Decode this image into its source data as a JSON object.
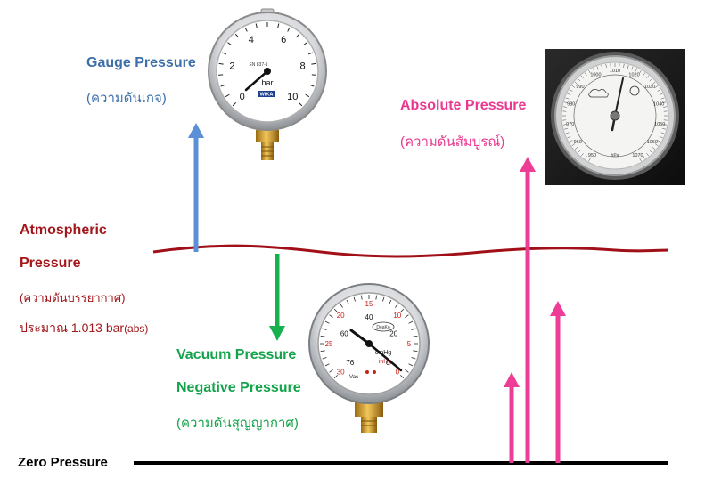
{
  "labels": {
    "gauge_title": "Gauge Pressure",
    "gauge_thai": "(ความดันเกจ)",
    "absolute_title": "Absolute Pressure",
    "absolute_thai": "(ความดันสัมบูรณ์)",
    "atm_line1": "Atmospheric",
    "atm_line2": "Pressure",
    "atm_thai": "(ความดันบรรยากาศ)",
    "atm_value": "ประมาณ 1.013 bar",
    "atm_value_suffix": "(abs)",
    "vacuum_title": "Vacuum Pressure",
    "negative_title": "Negative Pressure",
    "vacuum_thai": "(ความดันสุญญากาศ)",
    "zero_title": "Zero Pressure"
  },
  "gauges": {
    "bar_gauge": {
      "unit": "bar",
      "brand": "WIKA",
      "model": "EN 837-1",
      "ticks": [
        "0",
        "2",
        "4",
        "6",
        "8",
        "10"
      ]
    },
    "vacuum_gauge": {
      "unit": "cmHg",
      "unit2": "inHg",
      "brand": "DeaKo",
      "mark": "Vac",
      "outer_ticks": [
        "30",
        "25",
        "20",
        "15",
        "10",
        "5",
        "0"
      ],
      "inner_ticks": [
        "76",
        "60",
        "40",
        "20",
        "0"
      ]
    },
    "barometer": {
      "ticks": [
        "950",
        "960",
        "970",
        "980",
        "990",
        "1000",
        "1010",
        "1020",
        "1030",
        "1040",
        "1050",
        "1060",
        "1070"
      ],
      "unit": "hPa"
    }
  },
  "colors": {
    "atm_text": "#a3161a",
    "gauge_text": "#3d6fa8",
    "absolute_text": "#e8388f",
    "vacuum_text": "#14a34a",
    "zero_text": "#000000",
    "gauge_arrow": "#5b8fd6",
    "absolute_arrow": "#ee3d96",
    "vacuum_arrow": "#16b04c",
    "atm_line": "#a11018",
    "zero_line": "#000000"
  }
}
